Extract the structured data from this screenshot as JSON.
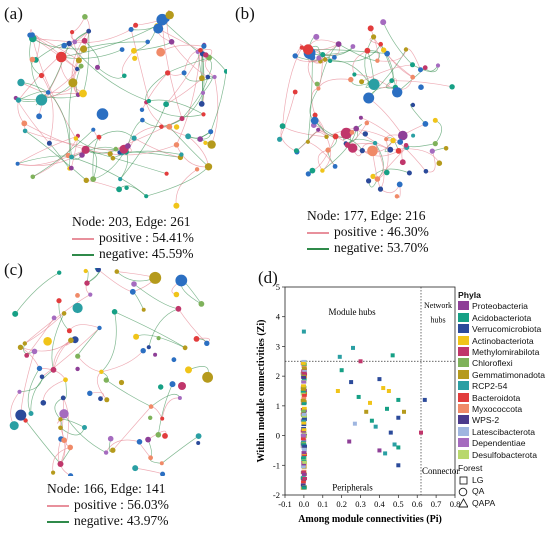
{
  "panels": [
    {
      "label": "(a)",
      "node_edge": "Node: 203, Edge: 261",
      "positive": "positive : 54.41%",
      "negative": "negative: 45.59%"
    },
    {
      "label": "(b)",
      "node_edge": "Node: 177, Edge: 216",
      "positive": "positive : 46.30%",
      "negative": "negative: 53.70%"
    },
    {
      "label": "(c)",
      "node_edge": "Node: 166, Edge: 141",
      "positive": "positive : 56.03%",
      "negative": "negative: 43.97%"
    }
  ],
  "networks": [
    {
      "nodes": 203,
      "edges": 261,
      "positive_fraction": 0.5441
    },
    {
      "nodes": 177,
      "edges": 216,
      "positive_fraction": 0.463
    },
    {
      "nodes": 166,
      "edges": 141,
      "positive_fraction": 0.5603
    }
  ],
  "scatter_label": "(d)",
  "colors": {
    "positive_edge": "#e8909c",
    "negative_edge": "#2f8a4a",
    "threshold_line": "#333333"
  },
  "phyla_title": "Phyla",
  "phyla": [
    {
      "name": "Proteobacteria",
      "color": "#8e3f97"
    },
    {
      "name": "Acidobacteriota",
      "color": "#16a085"
    },
    {
      "name": "Verrucomicrobiota",
      "color": "#2b4a9a"
    },
    {
      "name": "Actinobacteriota",
      "color": "#f0c419"
    },
    {
      "name": "Methylomirabilota",
      "color": "#c0366b"
    },
    {
      "name": "Chloroflexi",
      "color": "#7fb25b"
    },
    {
      "name": "Gemmatimonadota",
      "color": "#b59a1c"
    },
    {
      "name": "RCP2-54",
      "color": "#2a9fa3"
    },
    {
      "name": "Bacteroidota",
      "color": "#e23c3c"
    },
    {
      "name": "Myxococcota",
      "color": "#f08a68"
    },
    {
      "name": "WPS-2",
      "color": "#4b3a8c"
    },
    {
      "name": "Latescibacterota",
      "color": "#9fb6e0"
    },
    {
      "name": "Dependentiae",
      "color": "#a56bbf"
    },
    {
      "name": "Desulfobacterota",
      "color": "#b8d86c"
    }
  ],
  "forest_title": "Forest",
  "forest": [
    {
      "name": "LG",
      "shape": "square"
    },
    {
      "name": "QA",
      "shape": "circle"
    },
    {
      "name": "QAPA",
      "shape": "triangle"
    }
  ],
  "chart_data": {
    "type": "scatter",
    "xlabel": "Among module connectivities (Pi)",
    "ylabel": "Within module connectivities (Zi)",
    "xlim": [
      -0.1,
      0.8
    ],
    "ylim": [
      -2,
      5
    ],
    "xticks": [
      "-0.1",
      "0.0",
      "0.1",
      "0.2",
      "0.3",
      "0.4",
      "0.5",
      "0.6",
      "0.7",
      "0.8"
    ],
    "yticks": [
      "-2",
      "-1",
      "0",
      "1",
      "2",
      "3",
      "4",
      "5"
    ],
    "thresholds": {
      "pi": 0.62,
      "zi": 2.5
    },
    "annotations": [
      "Module hubs",
      "Network hubs",
      "Peripherals",
      "Connectors"
    ],
    "points": [
      {
        "x": 0.0,
        "y": 3.5,
        "phylum": "RCP2-54"
      },
      {
        "x": 0.19,
        "y": 2.65,
        "phylum": "RCP2-54"
      },
      {
        "x": 0.26,
        "y": 2.95,
        "phylum": "RCP2-54"
      },
      {
        "x": 0.3,
        "y": 2.5,
        "phylum": "Methylomirabilota"
      },
      {
        "x": 0.47,
        "y": 2.7,
        "phylum": "Acidobacteriota"
      },
      {
        "x": 0.64,
        "y": 1.2,
        "phylum": "Verrucomicrobiota"
      },
      {
        "x": 0.18,
        "y": 1.5,
        "phylum": "Actinobacteriota"
      },
      {
        "x": 0.2,
        "y": 2.2,
        "phylum": "Acidobacteriota"
      },
      {
        "x": 0.25,
        "y": 1.8,
        "phylum": "Verrucomicrobiota"
      },
      {
        "x": 0.29,
        "y": 1.3,
        "phylum": "Acidobacteriota"
      },
      {
        "x": 0.33,
        "y": 0.8,
        "phylum": "Gemmatimonadota"
      },
      {
        "x": 0.35,
        "y": 1.1,
        "phylum": "Actinobacteriota"
      },
      {
        "x": 0.38,
        "y": 0.3,
        "phylum": "RCP2-54"
      },
      {
        "x": 0.4,
        "y": 1.9,
        "phylum": "Verrucomicrobiota"
      },
      {
        "x": 0.42,
        "y": 1.6,
        "phylum": "Actinobacteriota"
      },
      {
        "x": 0.44,
        "y": 0.9,
        "phylum": "Acidobacteriota"
      },
      {
        "x": 0.45,
        "y": 1.5,
        "phylum": "Actinobacteriota"
      },
      {
        "x": 0.46,
        "y": 0.1,
        "phylum": "Verrucomicrobiota"
      },
      {
        "x": 0.48,
        "y": -0.3,
        "phylum": "RCP2-54"
      },
      {
        "x": 0.5,
        "y": 1.2,
        "phylum": "Acidobacteriota"
      },
      {
        "x": 0.5,
        "y": 0.6,
        "phylum": "Verrucomicrobiota"
      },
      {
        "x": 0.5,
        "y": -1.0,
        "phylum": "Verrucomicrobiota"
      },
      {
        "x": 0.53,
        "y": 0.8,
        "phylum": "Gemmatimonadota"
      },
      {
        "x": 0.4,
        "y": -0.5,
        "phylum": "Proteobacteria"
      },
      {
        "x": 0.36,
        "y": 0.5,
        "phylum": "Acidobacteriota"
      },
      {
        "x": 0.27,
        "y": 0.4,
        "phylum": "Latescibacterota"
      },
      {
        "x": 0.24,
        "y": -0.2,
        "phylum": "Proteobacteria"
      },
      {
        "x": 0.43,
        "y": -0.6,
        "phylum": "RCP2-54"
      },
      {
        "x": 0.5,
        "y": -0.4,
        "phylum": "Acidobacteriota"
      },
      {
        "x": 0.62,
        "y": 0.1,
        "phylum": "Methylomirabilota"
      }
    ]
  }
}
